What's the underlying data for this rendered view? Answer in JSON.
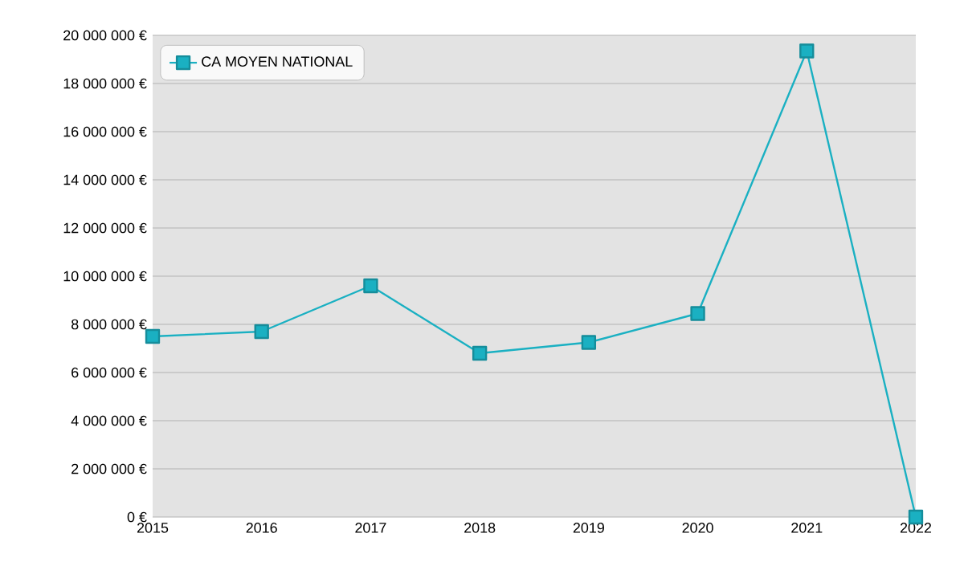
{
  "chart_data": {
    "type": "line",
    "x": [
      2015,
      2016,
      2017,
      2018,
      2019,
      2020,
      2021,
      2022
    ],
    "series": [
      {
        "name": "CA MOYEN NATIONAL",
        "color": "#1ab0c2",
        "values": [
          7500000,
          7700000,
          9600000,
          6800000,
          7250000,
          8450000,
          19350000,
          0
        ]
      }
    ],
    "xlim": [
      2015,
      2022
    ],
    "ylim": [
      0,
      20000000
    ],
    "xticks": [
      2015,
      2016,
      2017,
      2018,
      2019,
      2020,
      2021,
      2022
    ],
    "yticks": [
      {
        "value": 0,
        "label": "0 €"
      },
      {
        "value": 2000000,
        "label": "2 000 000 €"
      },
      {
        "value": 4000000,
        "label": "4 000 000 €"
      },
      {
        "value": 6000000,
        "label": "6 000 000 €"
      },
      {
        "value": 8000000,
        "label": "8 000 000 €"
      },
      {
        "value": 10000000,
        "label": "10 000 000 €"
      },
      {
        "value": 12000000,
        "label": "12 000 000 €"
      },
      {
        "value": 14000000,
        "label": "14 000 000 €"
      },
      {
        "value": 16000000,
        "label": "16 000 000 €"
      },
      {
        "value": 18000000,
        "label": "18 000 000 €"
      },
      {
        "value": 20000000,
        "label": "20 000 000 €"
      }
    ],
    "grid": "y",
    "legend": "top left",
    "marker": "square",
    "line_style": "solid"
  }
}
